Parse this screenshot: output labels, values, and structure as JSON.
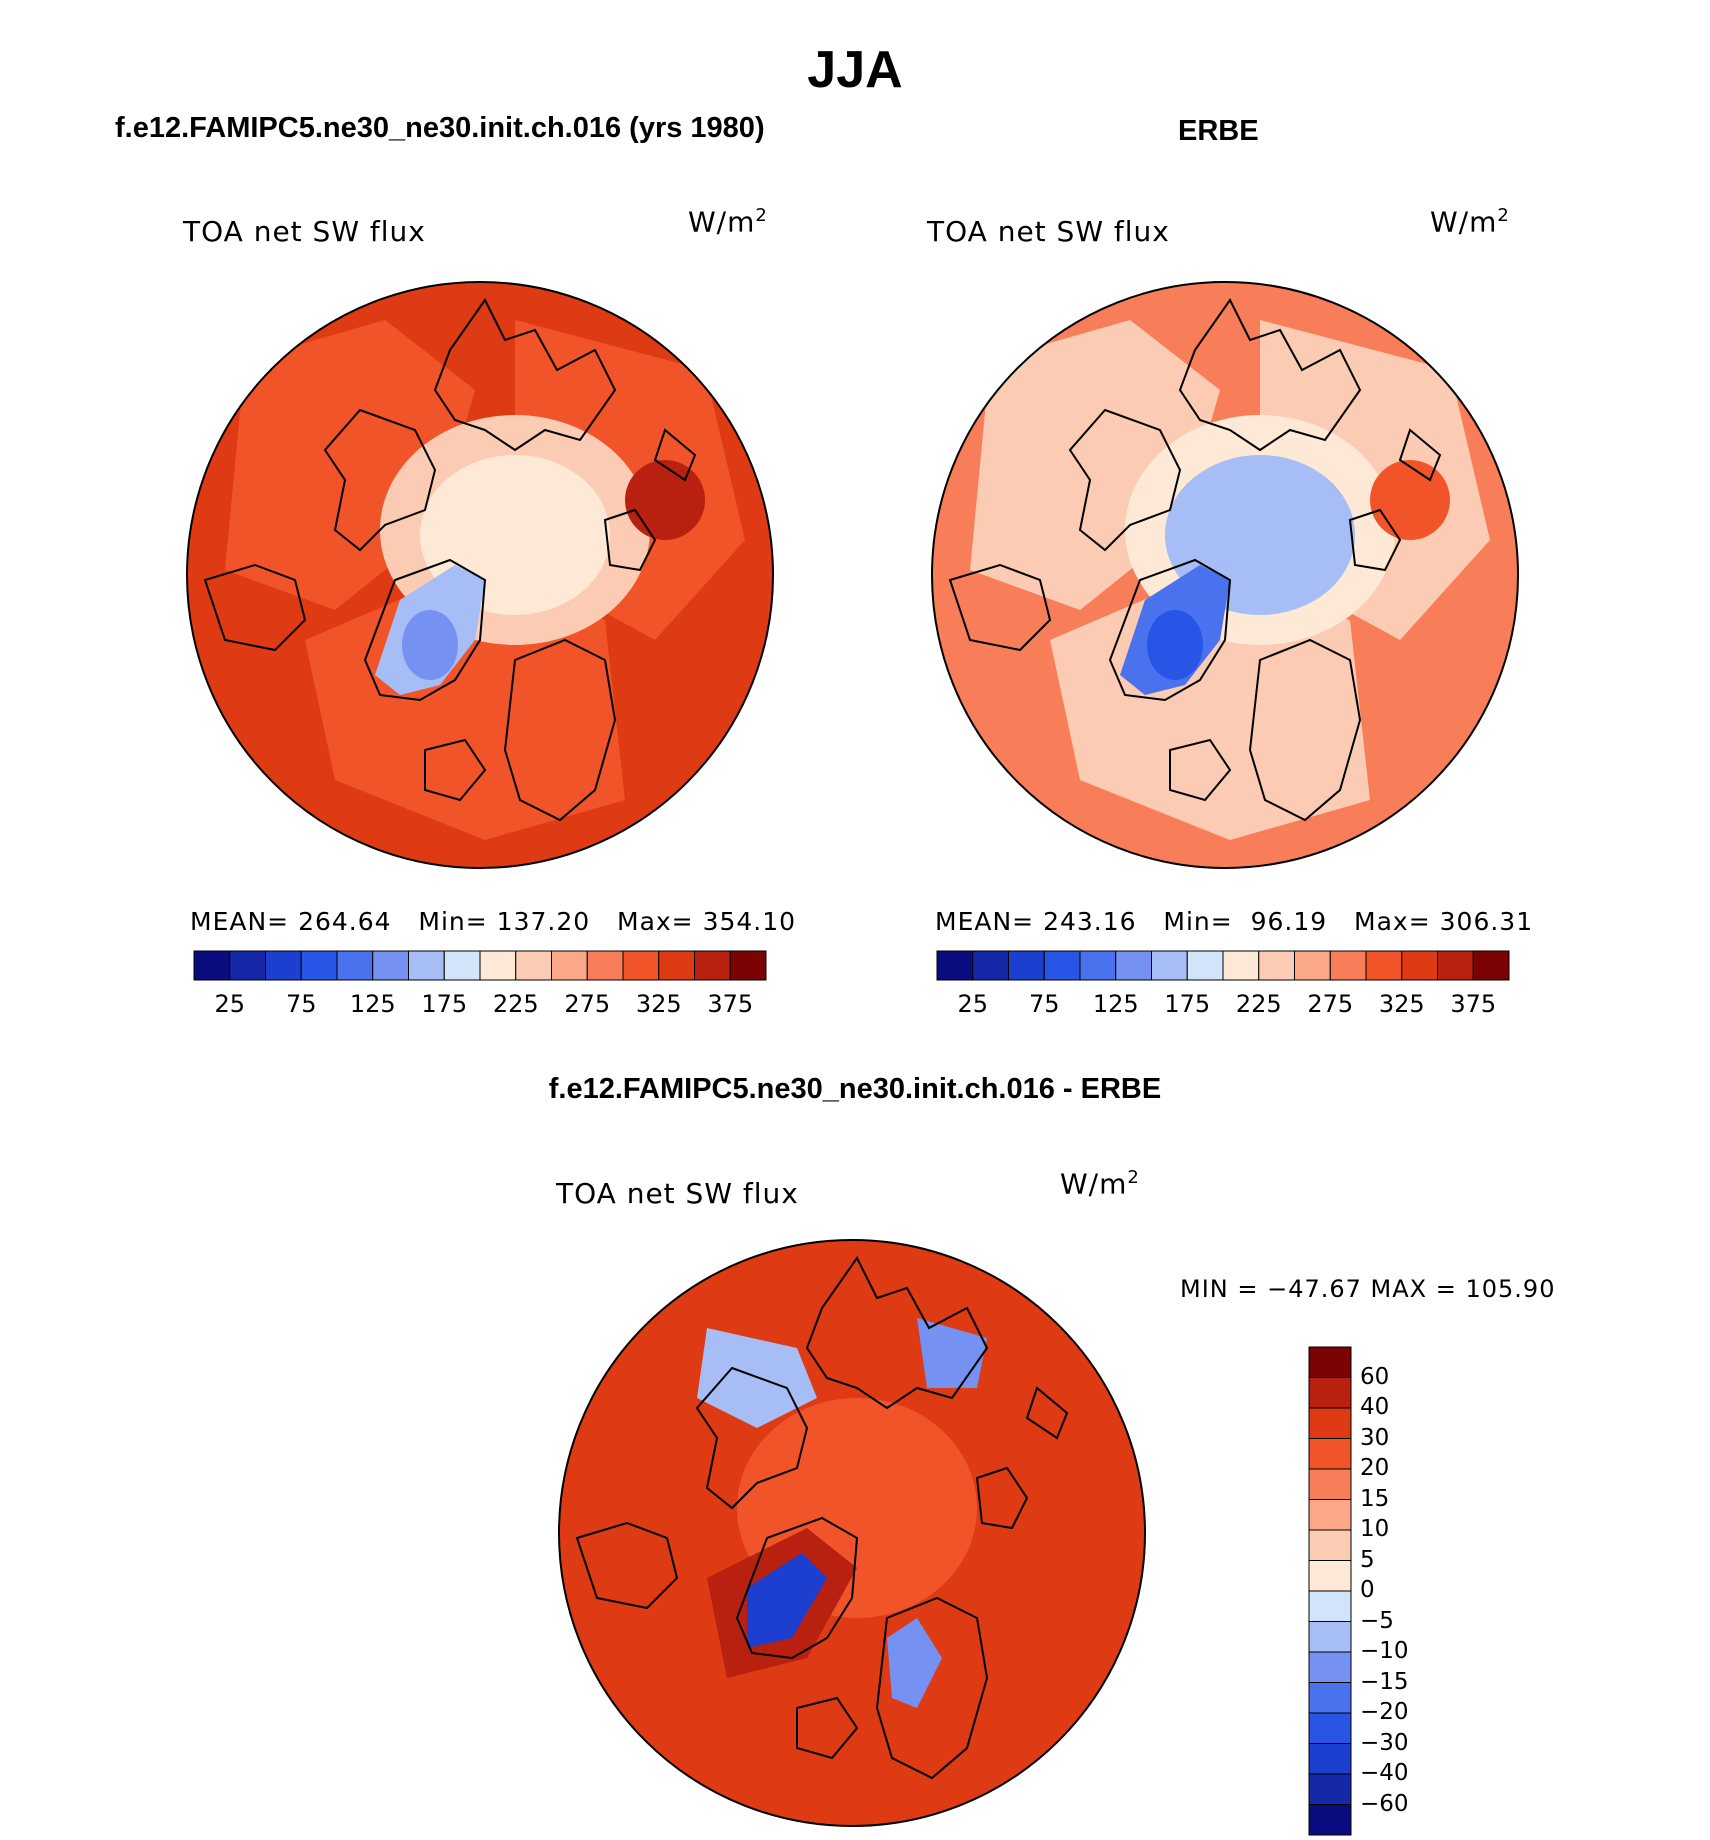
{
  "title": "JJA",
  "panels": [
    {
      "case_title": "f.e12.FAMIPC5.ne30_ne30.init.ch.016 (yrs 1980)",
      "var_label": "TOA net SW flux",
      "units": "W/m",
      "units_exp": "2",
      "stats": {
        "mean_label": "MEAN=",
        "mean": "264.64",
        "min_label": "Min=",
        "min": "137.20",
        "max_label": "Max=",
        "max": "354.10"
      },
      "fields": {
        "minimum": 137.2,
        "greenland": 165,
        "polar_core": 205,
        "polar_ring": 225,
        "continents": 300,
        "ocean": 330,
        "maximum": 354.1
      }
    },
    {
      "case_title": "ERBE",
      "var_label": "TOA net SW flux",
      "units": "W/m",
      "units_exp": "2",
      "stats": {
        "mean_label": "MEAN=",
        "mean": "243.16",
        "min_label": "Min=",
        "min": "96.19",
        "max_label": "Max=",
        "max": "306.31"
      },
      "fields": {
        "minimum": 96.19,
        "greenland": 110,
        "polar_core": 170,
        "polar_ring": 200,
        "continents": 245,
        "ocean": 285,
        "maximum": 306.31
      }
    }
  ],
  "abs_colorbar": {
    "colors": [
      "#0b0b80",
      "#1428a8",
      "#1c3fd0",
      "#2955e6",
      "#4a72ee",
      "#7592f2",
      "#a6bdf6",
      "#d2e4fa",
      "#fde9d6",
      "#fccbb3",
      "#fba889",
      "#f87e5a",
      "#f2542a",
      "#de3a14",
      "#b8200f",
      "#7c0303"
    ],
    "tick_labels": [
      "25",
      "75",
      "125",
      "175",
      "225",
      "275",
      "325",
      "375"
    ]
  },
  "difference_panel": {
    "case_title": "f.e12.FAMIPC5.ne30_ne30.init.ch.016 - ERBE",
    "var_label": "TOA net SW flux",
    "units": "W/m",
    "units_exp": "2",
    "minmax_text": "MIN = −47.67 MAX = 105.90",
    "fields": {
      "background": 30,
      "greenland_core": -40,
      "greenland_rim": 55,
      "polar": 20,
      "canada_patch": -10,
      "siberia_patch": -15
    },
    "colorbar": {
      "colors": [
        "#0b0b80",
        "#1428a8",
        "#1c3fd0",
        "#2955e6",
        "#4a72ee",
        "#7592f2",
        "#a6bdf6",
        "#d2e4fa",
        "#fde9d6",
        "#fccbb3",
        "#fba889",
        "#f87e5a",
        "#f2542a",
        "#de3a14",
        "#b8200f",
        "#7c0303"
      ],
      "labels": [
        "60",
        "40",
        "30",
        "20",
        "15",
        "10",
        "5",
        "0",
        "−5",
        "−10",
        "−15",
        "−20",
        "−30",
        "−40",
        "−60"
      ]
    }
  }
}
